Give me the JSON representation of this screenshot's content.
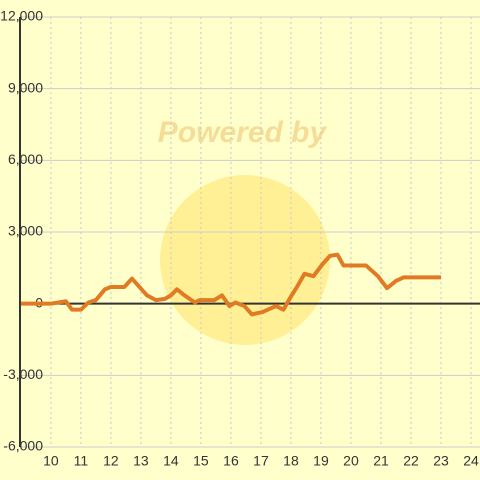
{
  "chart_data": {
    "type": "line",
    "watermark": "Powered by",
    "series": [
      {
        "color": "#e07b24",
        "x": [
          9,
          10,
          10.5,
          10.7,
          11,
          11.25,
          11.5,
          11.8,
          12,
          12.45,
          12.7,
          12.95,
          13.2,
          13.5,
          13.8,
          14,
          14.2,
          14.45,
          14.8,
          14.95,
          15.45,
          15.7,
          15.95,
          16.15,
          16.45,
          16.7,
          17.05,
          17.5,
          17.75,
          18,
          18.2,
          18.45,
          18.75,
          19.05,
          19.3,
          19.55,
          19.75,
          20.5,
          20.9,
          21.2,
          21.5,
          21.75,
          23
        ],
        "values": [
          0,
          0,
          100,
          -250,
          -250,
          50,
          150,
          600,
          700,
          700,
          1050,
          700,
          350,
          150,
          200,
          350,
          600,
          350,
          50,
          150,
          150,
          350,
          -100,
          50,
          -100,
          -450,
          -350,
          -100,
          -250,
          300,
          700,
          1250,
          1150,
          1650,
          2000,
          2050,
          1600,
          1600,
          1150,
          650,
          950,
          1100,
          1100
        ]
      }
    ],
    "xlim": [
      8.97,
      24.3
    ],
    "xticks": [
      10,
      11,
      12,
      13,
      14,
      15,
      16,
      17,
      18,
      19,
      20,
      21,
      22,
      23,
      24
    ],
    "ylim": [
      -6000,
      12000
    ],
    "yticks": [
      {
        "value": -6000,
        "label": "-6,000"
      },
      {
        "value": -3000,
        "label": "-3,000"
      },
      0,
      {
        "value": 3000,
        "label": "3,000"
      },
      {
        "value": 6000,
        "label": "6,000"
      },
      {
        "value": 9000,
        "label": "9,000"
      },
      {
        "value": 12000,
        "label": "12,000"
      }
    ],
    "grid": true
  }
}
